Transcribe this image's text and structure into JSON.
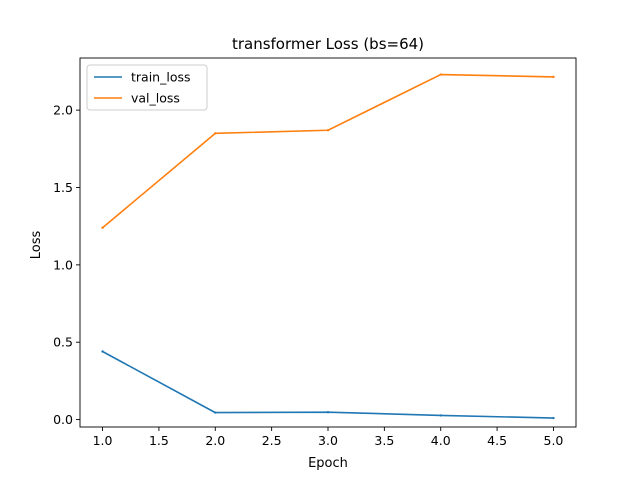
{
  "chart_data": {
    "type": "line",
    "title": "transformer Loss (bs=64)",
    "xlabel": "Epoch",
    "ylabel": "Loss",
    "x": [
      1,
      2,
      3,
      4,
      5
    ],
    "xticks": [
      "1.0",
      "1.5",
      "2.0",
      "2.5",
      "3.0",
      "3.5",
      "4.0",
      "4.5",
      "5.0"
    ],
    "yticks": [
      "0.0",
      "0.5",
      "1.0",
      "1.5",
      "2.0"
    ],
    "xlim": [
      0.8,
      5.2
    ],
    "ylim": [
      -0.048,
      2.337
    ],
    "grid": false,
    "legend_position": "top-left",
    "series": [
      {
        "name": "train_loss",
        "color": "#1f77b4",
        "values": [
          0.44,
          0.045,
          0.048,
          0.027,
          0.01
        ]
      },
      {
        "name": "val_loss",
        "color": "#ff7f0e",
        "values": [
          1.24,
          1.85,
          1.87,
          2.23,
          2.215
        ]
      }
    ]
  }
}
